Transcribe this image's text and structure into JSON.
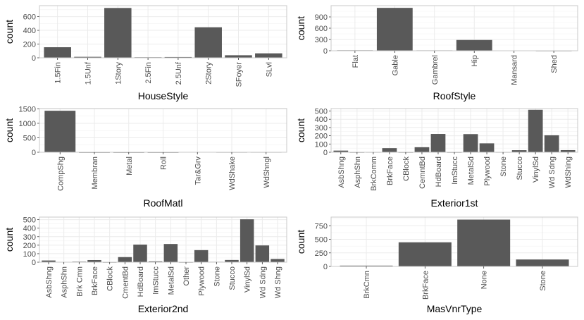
{
  "chart_data": [
    {
      "type": "bar",
      "xlabel": "HouseStyle",
      "ylabel": "count",
      "categories": [
        "1.5Fin",
        "1.5Unf",
        "1Story",
        "2.5Fin",
        "2.5Unf",
        "2Story",
        "SFoyer",
        "SLvl"
      ],
      "values": [
        154,
        14,
        726,
        8,
        11,
        445,
        37,
        65
      ],
      "ylim": [
        0,
        760
      ],
      "yticks": [
        0,
        200,
        400,
        600
      ],
      "grid": true
    },
    {
      "type": "bar",
      "xlabel": "RoofStyle",
      "ylabel": "count",
      "categories": [
        "Flat",
        "Gable",
        "Gambrel",
        "Hip",
        "Mansard",
        "Shed"
      ],
      "values": [
        13,
        1141,
        11,
        286,
        7,
        2
      ],
      "ylim": [
        0,
        1200
      ],
      "yticks": [
        0,
        300,
        600,
        900
      ],
      "grid": true
    },
    {
      "type": "bar",
      "xlabel": "RoofMatl",
      "ylabel": "count",
      "categories": [
        "CompShg",
        "Membran",
        "Metal",
        "Roll",
        "Tar&Grv",
        "WdShake",
        "WdShngl"
      ],
      "values": [
        1434,
        1,
        1,
        1,
        11,
        5,
        6
      ],
      "ylim": [
        0,
        1510
      ],
      "yticks": [
        0,
        500,
        1000,
        1500
      ],
      "grid": true
    },
    {
      "type": "bar",
      "xlabel": "Exterior1st",
      "ylabel": "count",
      "categories": [
        "AsbShng",
        "AsphShn",
        "BrkComm",
        "BrkFace",
        "CBlock",
        "CemntBd",
        "HdBoard",
        "ImStucc",
        "MetalSd",
        "Plywood",
        "Stone",
        "Stucco",
        "VinylSd",
        "Wd Sdng",
        "WdShing"
      ],
      "values": [
        20,
        1,
        2,
        50,
        1,
        61,
        222,
        1,
        220,
        108,
        2,
        25,
        515,
        206,
        26
      ],
      "ylim": [
        0,
        530
      ],
      "yticks": [
        0,
        100,
        200,
        300,
        400,
        500
      ],
      "grid": true
    },
    {
      "type": "bar",
      "xlabel": "Exterior2nd",
      "ylabel": "count",
      "categories": [
        "AsbShng",
        "AsphShn",
        "Brk Cmn",
        "BrkFace",
        "CBlock",
        "CmentBd",
        "HdBoard",
        "ImStucc",
        "MetalSd",
        "Other",
        "Plywood",
        "Stone",
        "Stucco",
        "VinylSd",
        "Wd Sdng",
        "Wd Shng"
      ],
      "values": [
        20,
        3,
        7,
        25,
        1,
        60,
        207,
        10,
        214,
        1,
        142,
        5,
        26,
        504,
        197,
        38
      ],
      "ylim": [
        0,
        530
      ],
      "yticks": [
        0,
        100,
        200,
        300,
        400,
        500
      ],
      "grid": true
    },
    {
      "type": "bar",
      "xlabel": "MasVnrType",
      "ylabel": "count",
      "categories": [
        "BrkCmn",
        "BrkFace",
        "None",
        "Stone"
      ],
      "values": [
        15,
        445,
        864,
        128
      ],
      "ylim": [
        0,
        910
      ],
      "yticks": [
        0,
        250,
        500,
        750
      ],
      "grid": true
    }
  ],
  "style": {
    "bar_color": "#595959",
    "grid_color": "#ebebeb",
    "frame_color": "#c8c8c8"
  }
}
